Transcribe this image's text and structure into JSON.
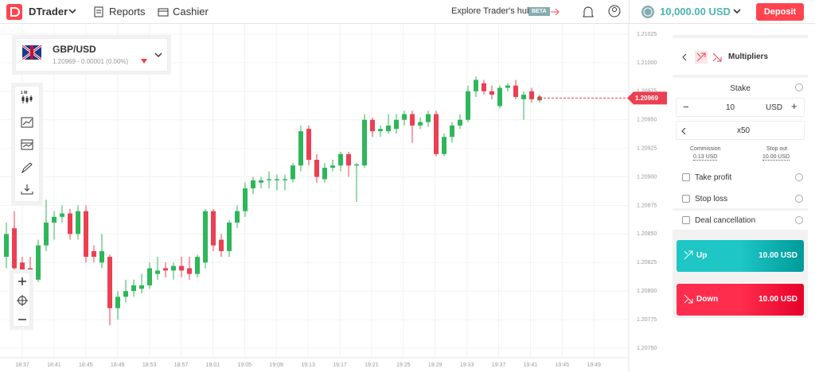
{
  "header": {
    "brand": "DTrader",
    "reports": "Reports",
    "cashier": "Cashier",
    "hub": "Explore Trader's hub",
    "beta": "BETA",
    "balance": "10,000.00 USD",
    "deposit": "Deposit"
  },
  "symbol": {
    "name": "GBP/USD",
    "quote": "1.20969 - 0.00001 (0.00%)"
  },
  "toolbar": {
    "interval": "1 M"
  },
  "trade": {
    "type": "Multipliers",
    "stake_label": "Stake",
    "stake": "10",
    "currency": "USD",
    "multiplier": "x50",
    "commission_label": "Commission",
    "commission": "0.13 USD",
    "stopout_label": "Stop out",
    "stopout": "10.00 USD",
    "take_profit": "Take profit",
    "stop_loss": "Stop loss",
    "deal_cancellation": "Deal cancellation",
    "up": "Up",
    "up_amount": "10.00 USD",
    "down": "Down",
    "down_amount": "10.00 USD"
  },
  "chart": {
    "type": "candlestick",
    "current_price": "1.20969",
    "up_color": "#2fb65b",
    "down_color": "#ec3f52",
    "ylim": [
      1.2075,
      1.21025
    ],
    "yticks": [
      1.21025,
      {
        "value": 1.21,
        "label": "1.21000"
      },
      1.20975,
      {
        "value": 1.2095,
        "label": "1.20950"
      },
      1.20925,
      {
        "value": 1.209,
        "label": "1.20900"
      },
      1.20875,
      {
        "value": 1.2085,
        "label": "1.20850"
      },
      1.20825,
      {
        "value": 1.208,
        "label": "1.20800"
      },
      1.20775,
      {
        "value": 1.2075,
        "label": "1.20750"
      }
    ],
    "xticks": [
      "18:37",
      "18:41",
      "18:45",
      "18:49",
      "18:53",
      "18:57",
      "19:01",
      "19:05",
      "19:09",
      "19:13",
      "19:17",
      "19:21",
      "19:25",
      "19:29",
      "19:33",
      "19:37",
      "19:41",
      "19:45",
      "19:49"
    ],
    "candles": [
      [
        1.2083,
        1.2086,
        1.2082,
        1.2085
      ],
      [
        1.20855,
        1.2087,
        1.2081,
        1.2082
      ],
      [
        1.20825,
        1.2083,
        1.20805,
        1.20815
      ],
      [
        1.2082,
        1.2083,
        1.208,
        1.2081
      ],
      [
        1.2081,
        1.20845,
        1.20808,
        1.2084
      ],
      [
        1.2084,
        1.2088,
        1.20835,
        1.2086
      ],
      [
        1.2086,
        1.2087,
        1.20845,
        1.20865
      ],
      [
        1.20865,
        1.20875,
        1.2086,
        1.20868
      ],
      [
        1.20868,
        1.20872,
        1.20845,
        1.2085
      ],
      [
        1.2085,
        1.20875,
        1.20845,
        1.2087
      ],
      [
        1.2087,
        1.20875,
        1.20825,
        1.2083
      ],
      [
        1.20835,
        1.2084,
        1.20825,
        1.2083
      ],
      [
        1.20825,
        1.2085,
        1.2082,
        1.20835
      ],
      [
        1.2083,
        1.20832,
        1.2077,
        1.20785
      ],
      [
        1.20785,
        1.208,
        1.20775,
        1.20795
      ],
      [
        1.20795,
        1.2081,
        1.2079,
        1.208
      ],
      [
        1.208,
        1.2081,
        1.20795,
        1.20805
      ],
      [
        1.20802,
        1.20815,
        1.20798,
        1.20805
      ],
      [
        1.20805,
        1.20825,
        1.20802,
        1.2082
      ],
      [
        1.20815,
        1.2083,
        1.2081,
        1.20818
      ],
      [
        1.2082,
        1.20825,
        1.20812,
        1.20818
      ],
      [
        1.20818,
        1.20825,
        1.2081,
        1.20822
      ],
      [
        1.20822,
        1.2083,
        1.20812,
        1.20818
      ],
      [
        1.2082,
        1.2083,
        1.2081,
        1.20815
      ],
      [
        1.20815,
        1.20832,
        1.20812,
        1.2083
      ],
      [
        1.20825,
        1.20872,
        1.2082,
        1.2087
      ],
      [
        1.2087,
        1.20872,
        1.20835,
        1.2084
      ],
      [
        1.20845,
        1.2085,
        1.2083,
        1.20835
      ],
      [
        1.20835,
        1.20862,
        1.2083,
        1.2086
      ],
      [
        1.2086,
        1.20875,
        1.20855,
        1.2087
      ],
      [
        1.2087,
        1.20895,
        1.20865,
        1.2089
      ],
      [
        1.2089,
        1.209,
        1.20885,
        1.20897
      ],
      [
        1.20895,
        1.209,
        1.2089,
        1.20897
      ],
      [
        1.20897,
        1.20905,
        1.2089,
        1.20898
      ],
      [
        1.20897,
        1.20902,
        1.20888,
        1.20898
      ],
      [
        1.20897,
        1.20902,
        1.20888,
        1.20898
      ],
      [
        1.20898,
        1.20912,
        1.20895,
        1.2091
      ],
      [
        1.2091,
        1.20945,
        1.20905,
        1.2094
      ],
      [
        1.20942,
        1.20945,
        1.2091,
        1.20915
      ],
      [
        1.20915,
        1.2092,
        1.20895,
        1.209
      ],
      [
        1.20898,
        1.20912,
        1.20895,
        1.20908
      ],
      [
        1.20908,
        1.20915,
        1.20905,
        1.2091
      ],
      [
        1.2091,
        1.20922,
        1.20905,
        1.2092
      ],
      [
        1.2092,
        1.20922,
        1.209,
        1.2091
      ],
      [
        1.2091,
        1.20912,
        1.20878,
        1.20911
      ],
      [
        1.2091,
        1.20955,
        1.20908,
        1.2095
      ],
      [
        1.2095,
        1.20952,
        1.20935,
        1.2094
      ],
      [
        1.2094,
        1.20945,
        1.20935,
        1.20942
      ],
      [
        1.2094,
        1.20955,
        1.20938,
        1.20945
      ],
      [
        1.20942,
        1.20955,
        1.20938,
        1.2095
      ],
      [
        1.2095,
        1.20958,
        1.20945,
        1.20955
      ],
      [
        1.20955,
        1.20958,
        1.2093,
        1.20945
      ],
      [
        1.20945,
        1.20952,
        1.20942,
        1.20948
      ],
      [
        1.20948,
        1.20958,
        1.20944,
        1.20955
      ],
      [
        1.20955,
        1.20958,
        1.20918,
        1.2092
      ],
      [
        1.2092,
        1.20938,
        1.20918,
        1.20935
      ],
      [
        1.20935,
        1.20948,
        1.2093,
        1.20945
      ],
      [
        1.20945,
        1.20955,
        1.20942,
        1.2095
      ],
      [
        1.2095,
        1.2098,
        1.20948,
        1.20975
      ],
      [
        1.20975,
        1.20988,
        1.2097,
        1.20985
      ],
      [
        1.20982,
        1.20985,
        1.20972,
        1.20975
      ],
      [
        1.20975,
        1.2098,
        1.20968,
        1.20972
      ],
      [
        1.20962,
        1.2098,
        1.2096,
        1.20978
      ],
      [
        1.20978,
        1.20982,
        1.20975,
        1.2098
      ],
      [
        1.2098,
        1.20985,
        1.20968,
        1.2097
      ],
      [
        1.20968,
        1.20975,
        1.2095,
        1.20972
      ],
      [
        1.20975,
        1.20978,
        1.20965,
        1.20968
      ],
      [
        1.20967,
        1.20972,
        1.20965,
        1.2097
      ]
    ]
  }
}
